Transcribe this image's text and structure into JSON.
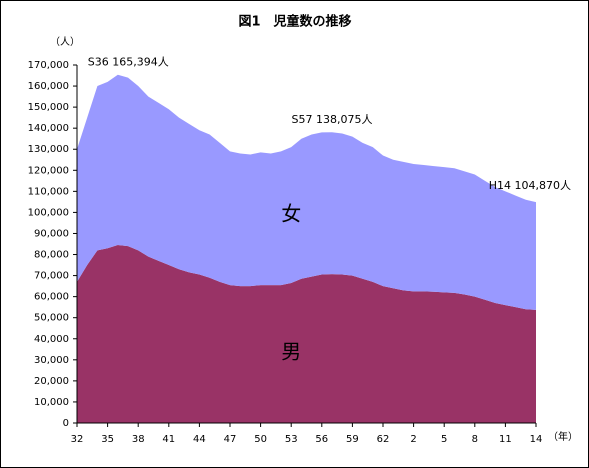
{
  "chart_data": {
    "type": "stacked_area",
    "title": "図1　児童数の推移",
    "y_unit": "（人）",
    "x_unit": "（年）",
    "categories": [
      "32",
      null,
      null,
      "35",
      null,
      null,
      "38",
      null,
      null,
      "41",
      null,
      null,
      "44",
      null,
      null,
      "47",
      null,
      null,
      "50",
      null,
      null,
      "53",
      null,
      null,
      "56",
      null,
      null,
      "59",
      null,
      null,
      "62",
      null,
      null,
      "2",
      null,
      null,
      "5",
      null,
      null,
      "8",
      null,
      null,
      "11",
      null,
      null,
      "14"
    ],
    "series": [
      {
        "name": "男",
        "color": "#993366",
        "values": [
          67000,
          75000,
          82000,
          83000,
          84500,
          84000,
          82000,
          79000,
          77000,
          75000,
          73000,
          71500,
          70500,
          69000,
          67000,
          65500,
          65000,
          65000,
          65500,
          65500,
          65500,
          66500,
          68500,
          69500,
          70500,
          70700,
          70500,
          70000,
          68500,
          67000,
          65000,
          64000,
          63000,
          62500,
          62500,
          62300,
          62000,
          61800,
          61000,
          60000,
          58500,
          57000,
          56000,
          55000,
          54000,
          53700
        ]
      },
      {
        "name": "女",
        "color": "#9999ff",
        "values": [
          63000,
          70000,
          78000,
          79000,
          80894,
          80000,
          78000,
          76000,
          75000,
          74000,
          72000,
          70500,
          68500,
          68000,
          66000,
          63500,
          63000,
          62500,
          63000,
          62500,
          63500,
          64500,
          66500,
          67500,
          67500,
          67375,
          67000,
          66000,
          64500,
          64000,
          62000,
          61000,
          61000,
          60500,
          60000,
          59700,
          59500,
          59200,
          58500,
          58000,
          56500,
          55000,
          54000,
          53000,
          52000,
          51170
        ]
      }
    ],
    "annotations": [
      "S36 165,394人",
      "S57 138,075人",
      "H14 104,870人"
    ],
    "ylim": [
      0,
      170000
    ],
    "yticks": [
      0,
      {
        "value": 10000,
        "label": "10,000"
      },
      {
        "value": 20000,
        "label": "20,000"
      },
      {
        "value": 30000,
        "label": "30,000"
      },
      {
        "value": 40000,
        "label": "40,000"
      },
      {
        "value": 50000,
        "label": "50,000"
      },
      {
        "value": 60000,
        "label": "60,000"
      },
      {
        "value": 70000,
        "label": "70,000"
      },
      {
        "value": 80000,
        "label": "80,000"
      },
      {
        "value": 90000,
        "label": "90,000"
      },
      {
        "value": 100000,
        "label": "100,000"
      },
      {
        "value": 110000,
        "label": "110,000"
      },
      {
        "value": 120000,
        "label": "120,000"
      },
      {
        "value": 130000,
        "label": "130,000"
      },
      {
        "value": 140000,
        "label": "140,000"
      },
      {
        "value": 150000,
        "label": "150,000"
      },
      {
        "value": 160000,
        "label": "160,000"
      },
      {
        "value": 170000,
        "label": "170,000"
      }
    ]
  }
}
